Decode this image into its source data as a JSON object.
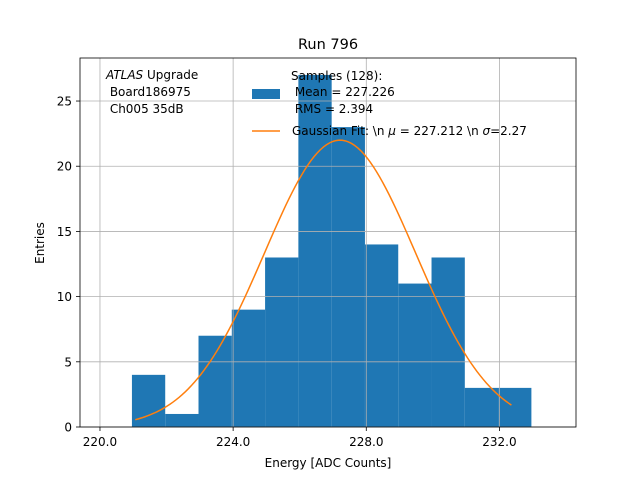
{
  "chart_data": {
    "type": "bar",
    "title": "Run 796",
    "xlabel": "Energy [ADC Counts]",
    "ylabel": "Entries",
    "xlim": [
      219.4,
      234.3
    ],
    "ylim": [
      0,
      28.3
    ],
    "grid": true,
    "xticks": [
      220,
      224,
      228,
      232
    ],
    "xtick_labels": [
      "220.0",
      "224.0",
      "228.0",
      "232.0"
    ],
    "yticks": [
      0,
      5,
      10,
      15,
      20,
      25
    ],
    "yticks_labels": [
      "0",
      "5",
      "10",
      "15",
      "20",
      "25"
    ],
    "bins": [
      {
        "x0": 220.96,
        "x1": 221.96,
        "value": 4
      },
      {
        "x0": 221.96,
        "x1": 222.96,
        "value": 1
      },
      {
        "x0": 222.96,
        "x1": 223.96,
        "value": 7
      },
      {
        "x0": 223.96,
        "x1": 224.96,
        "value": 9
      },
      {
        "x0": 224.96,
        "x1": 225.96,
        "value": 13
      },
      {
        "x0": 225.96,
        "x1": 226.96,
        "value": 27
      },
      {
        "x0": 226.96,
        "x1": 227.96,
        "value": 23
      },
      {
        "x0": 227.96,
        "x1": 228.96,
        "value": 14
      },
      {
        "x0": 228.96,
        "x1": 229.96,
        "value": 11
      },
      {
        "x0": 229.96,
        "x1": 230.96,
        "value": 13
      },
      {
        "x0": 230.96,
        "x1": 231.96,
        "value": 3
      },
      {
        "x0": 231.96,
        "x1": 232.96,
        "value": 3
      }
    ],
    "gaussian_fit": {
      "mu": 227.212,
      "sigma": 2.27,
      "amplitude": 22.0,
      "x_range": [
        221.06,
        232.36
      ]
    },
    "series": [
      {
        "name": "Samples (128):\n Mean = 227.226\n RMS = 2.394",
        "color": "#1f77b4",
        "kind": "histogram"
      },
      {
        "name": "Gaussian Fit: \\n $\\mu$ = 227.212 \\n $\\sigma$=2.27",
        "color": "#ff7f0e",
        "kind": "line"
      }
    ],
    "annotation": {
      "line1_italic": "ATLAS",
      "line1_rest": " Upgrade",
      "line2": " Board186975",
      "line3": " Ch005 35dB"
    },
    "legend": {
      "placement": "top-center",
      "hist_label_lines": [
        "Samples (128):",
        " Mean = 227.226",
        " RMS = 2.394"
      ],
      "fit_label_prefix": "Gaussian Fit: \\n ",
      "fit_mu_symbol": "μ",
      "fit_mid": " = 227.212 \\n ",
      "fit_sigma_symbol": "σ",
      "fit_suffix": "=2.27"
    }
  }
}
